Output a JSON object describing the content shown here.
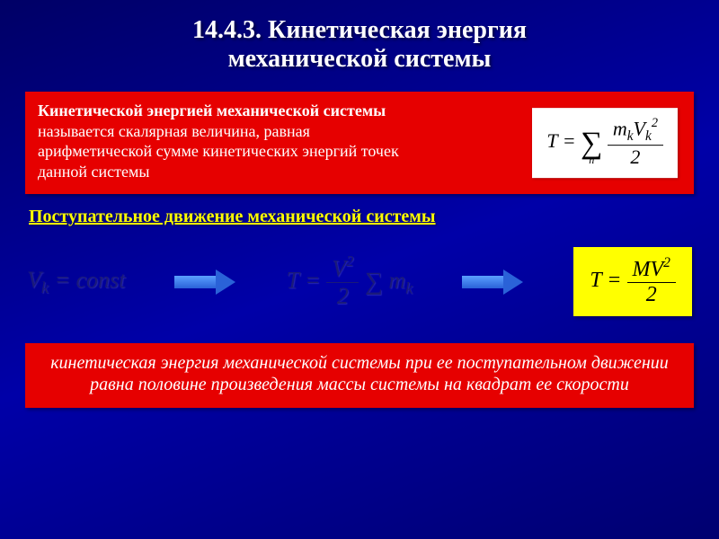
{
  "title_line1": "14.4.3. Кинетическая энергия",
  "title_line2": "механической системы",
  "definition": {
    "term": "Кинетической энергией механической системы",
    "body": "называется скалярная величина, равная арифметической сумме кинетических энергий точек данной системы",
    "formula_lhs": "T",
    "formula_eq": "=",
    "formula_num": "m<sub>k</sub>V<sub>k</sub><sup>2</sup>",
    "formula_den": "2",
    "sigma_sub": "n"
  },
  "subheading": "Поступательное движение механической системы",
  "flow": {
    "step1": "V<sub>k</sub> = const",
    "step2_lhs": "T",
    "step2_num": "V<sup>2</sup>",
    "step2_den": "2",
    "result_lhs": "T",
    "result_num": "MV<sup>2</sup>",
    "result_den": "2"
  },
  "conclusion": "кинетическая энергия механической системы при ее поступательном движении равна половине произведения массы системы на квадрат ее скорости",
  "colors": {
    "bg": "#000080",
    "red": "#e60000",
    "yellow": "#ffff00",
    "white": "#ffffff"
  }
}
